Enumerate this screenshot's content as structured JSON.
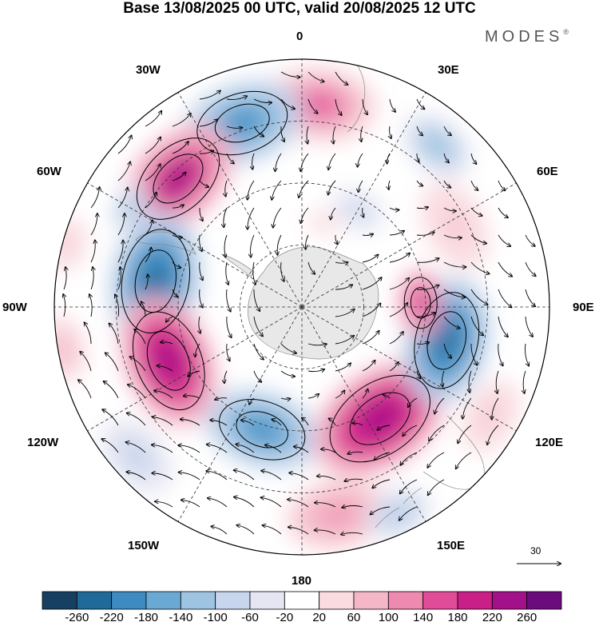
{
  "title": "Base 13/08/2025 00 UTC, valid 20/08/2025 12 UTC",
  "brand": "MODES",
  "brand_mark": "®",
  "longitude_labels": {
    "n0": "0",
    "n30e": "30E",
    "n60e": "60E",
    "n90e": "90E",
    "n120e": "120E",
    "n150e": "150E",
    "n180": "180",
    "n150w": "150W",
    "n120w": "120W",
    "n90w": "90W",
    "n60w": "60W",
    "n30w": "30W"
  },
  "vector_reference": {
    "value": "30"
  },
  "colorbar": {
    "colors": [
      "#173f61",
      "#1f6a99",
      "#3d8bc1",
      "#6aa9d4",
      "#9fc4e2",
      "#c7d6ec",
      "#e6e6f3",
      "#ffffff",
      "#f9dbe0",
      "#f4b7c7",
      "#ee89b0",
      "#e14c98",
      "#c91f86",
      "#a3118a",
      "#6a0c7c"
    ],
    "ticks": [
      "-260",
      "-220",
      "-180",
      "-140",
      "-100",
      "-60",
      "-20",
      "20",
      "60",
      "100",
      "140",
      "180",
      "220",
      "260"
    ]
  },
  "anomalies": [
    {
      "lon": 5,
      "r": 0.82,
      "value": 160,
      "size": 0.38
    },
    {
      "lon": -18,
      "r": 0.78,
      "value": -200,
      "size": 0.4
    },
    {
      "lon": -44,
      "r": 0.72,
      "value": 240,
      "size": 0.42
    },
    {
      "lon": -60,
      "r": 0.8,
      "value": -130,
      "size": 0.16
    },
    {
      "lon": -80,
      "r": 0.6,
      "value": -260,
      "size": 0.45
    },
    {
      "lon": -112,
      "r": 0.58,
      "value": 250,
      "size": 0.44
    },
    {
      "lon": -162,
      "r": 0.52,
      "value": -220,
      "size": 0.38
    },
    {
      "lon": 145,
      "r": 0.55,
      "value": 250,
      "size": 0.48
    },
    {
      "lon": 103,
      "r": 0.6,
      "value": -260,
      "size": 0.42
    },
    {
      "lon": 88,
      "r": 0.48,
      "value": 210,
      "size": 0.22
    },
    {
      "lon": 40,
      "r": 0.85,
      "value": -130,
      "size": 0.25
    },
    {
      "lon": 30,
      "r": 0.45,
      "value": -80,
      "size": 0.18
    },
    {
      "lon": 62,
      "r": 0.7,
      "value": 70,
      "size": 0.3
    },
    {
      "lon": 170,
      "r": 0.85,
      "value": 110,
      "size": 0.35
    },
    {
      "lon": 155,
      "r": 0.92,
      "value": -110,
      "size": 0.22
    },
    {
      "lon": -132,
      "r": 0.9,
      "value": -100,
      "size": 0.28
    },
    {
      "lon": -100,
      "r": 0.98,
      "value": 80,
      "size": 0.22
    },
    {
      "lon": -75,
      "r": 0.98,
      "value": 60,
      "size": 0.18
    },
    {
      "lon": 120,
      "r": 0.88,
      "value": 60,
      "size": 0.25
    },
    {
      "lon": 15,
      "r": 0.35,
      "value": 40,
      "size": 0.15
    }
  ]
}
